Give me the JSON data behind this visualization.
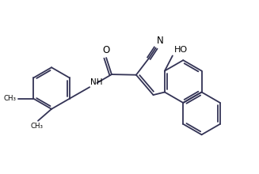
{
  "bg_color": "#ffffff",
  "line_color": "#333355",
  "font_color": "#000000",
  "line_width": 1.3,
  "figsize": [
    3.27,
    2.2
  ],
  "dpi": 100,
  "xlim": [
    0,
    10.5
  ],
  "ylim": [
    0,
    7.0
  ]
}
